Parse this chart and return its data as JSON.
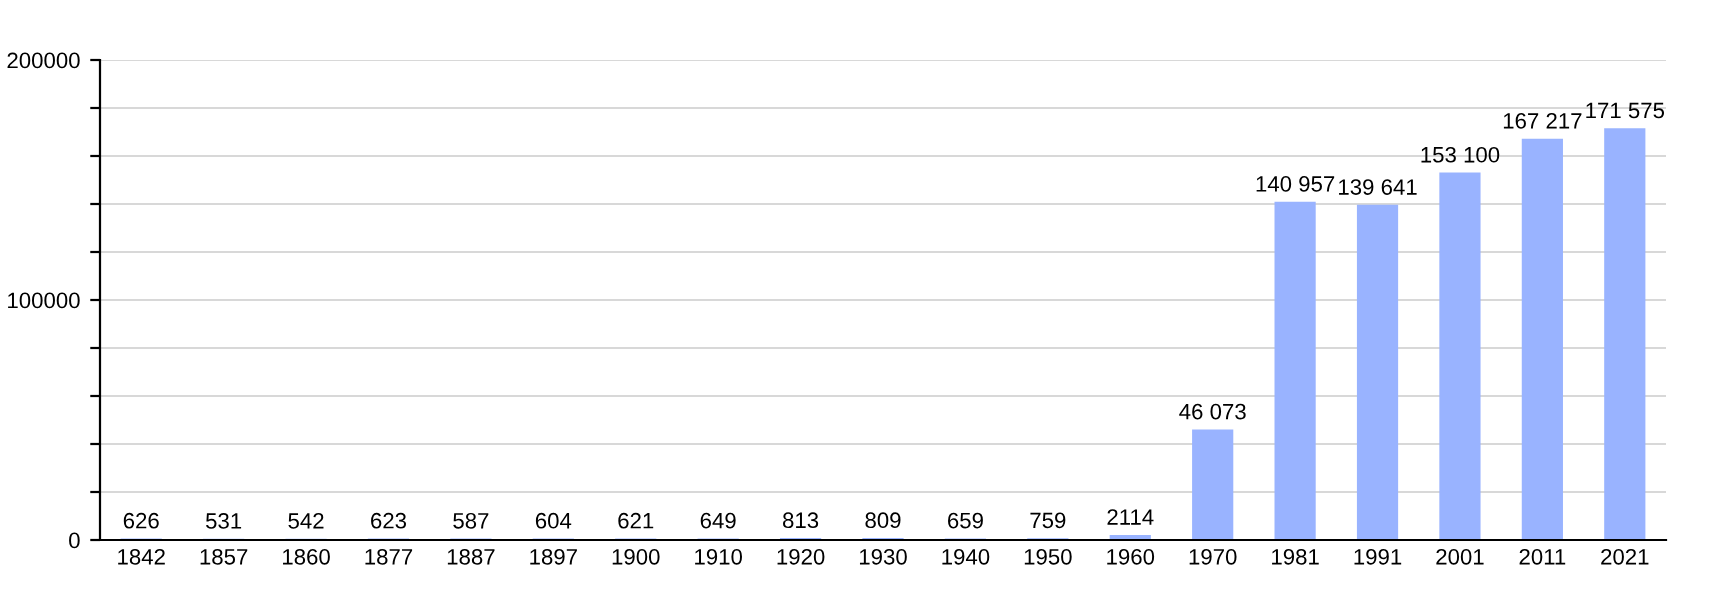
{
  "chart_data": {
    "type": "bar",
    "categories": [
      "1842",
      "1857",
      "1860",
      "1877",
      "1887",
      "1897",
      "1900",
      "1910",
      "1920",
      "1930",
      "1940",
      "1950",
      "1960",
      "1970",
      "1981",
      "1991",
      "2001",
      "2011",
      "2021"
    ],
    "values": [
      626,
      531,
      542,
      623,
      587,
      604,
      621,
      649,
      813,
      809,
      659,
      759,
      2114,
      46073,
      140957,
      139641,
      153100,
      167217,
      171575
    ],
    "value_labels": [
      "626",
      "531",
      "542",
      "623",
      "587",
      "604",
      "621",
      "649",
      "813",
      "809",
      "659",
      "759",
      "2114",
      "46 073",
      "140 957",
      "139 641",
      "153 100",
      "167 217",
      "171 575"
    ],
    "color": "#99b3ff",
    "ylim": [
      0,
      200000
    ],
    "yticks": [
      0,
      {
        "value": 20000,
        "label": null
      },
      {
        "value": 40000,
        "label": null
      },
      {
        "value": 60000,
        "label": null
      },
      {
        "value": 80000,
        "label": null
      },
      100000,
      {
        "value": 120000,
        "label": null
      },
      {
        "value": 140000,
        "label": null
      },
      {
        "value": 160000,
        "label": null
      },
      {
        "value": 180000,
        "label": null
      },
      200000
    ],
    "grid": "y"
  }
}
